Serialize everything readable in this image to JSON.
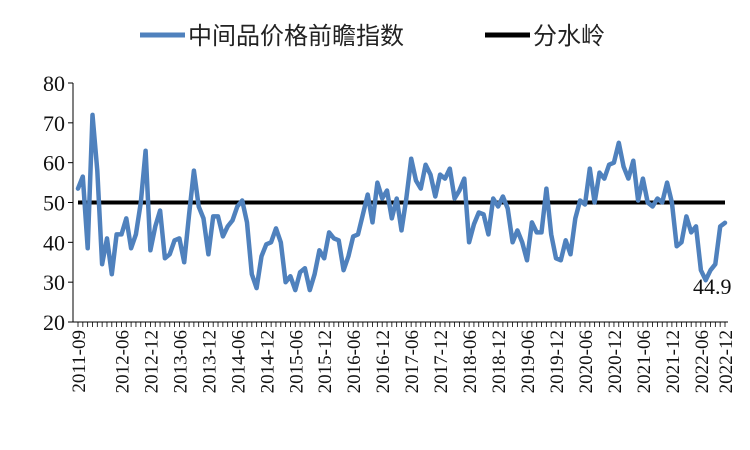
{
  "chart_data": {
    "type": "line",
    "title": "",
    "xlabel": "",
    "ylabel": "",
    "ylim": [
      20,
      80
    ],
    "yticks": [
      "20",
      "30",
      "40",
      "50",
      "60",
      "70",
      "80"
    ],
    "legend_position": "top",
    "categories_first": "2011-09",
    "xtick_labels": [
      "2011-09",
      "2012-06",
      "2012-12",
      "2013-06",
      "2013-12",
      "2014-06",
      "2014-12",
      "2015-06",
      "2015-12",
      "2016-06",
      "2016-12",
      "2017-06",
      "2017-12",
      "2018-06",
      "2018-12",
      "2019-06",
      "2019-12",
      "2020-06",
      "2020-12",
      "2021-06",
      "2021-12",
      "2022-06",
      "2022-12"
    ],
    "series": [
      {
        "name": "中间品价格前瞻指数",
        "color": "#4F81BD",
        "values": [
          53.5,
          56.5,
          38.5,
          72,
          58,
          34.5,
          41,
          32,
          42,
          42,
          46,
          38.5,
          42,
          50,
          63,
          38,
          44,
          48,
          36,
          37,
          40.5,
          41,
          35,
          47,
          58,
          49,
          46,
          37,
          46.5,
          46.5,
          41.5,
          44,
          45.5,
          49,
          50.5,
          45,
          32,
          28.5,
          36.5,
          39.5,
          40,
          43.5,
          40,
          30,
          31.5,
          28,
          32.5,
          33.5,
          28,
          32,
          38,
          36,
          42.5,
          41,
          40.5,
          33,
          36.5,
          41.5,
          42,
          47,
          52,
          45,
          55,
          51,
          53,
          46,
          51,
          43,
          51,
          61,
          55.5,
          53.5,
          59.5,
          57,
          51.5,
          57,
          56,
          58.5,
          51,
          53,
          56,
          40,
          44.5,
          47.5,
          47,
          42,
          51,
          49,
          51.5,
          48.5,
          40,
          43,
          40,
          35.5,
          45,
          42.5,
          42.5,
          53.5,
          42,
          36,
          35.5,
          40.5,
          37,
          46,
          50.5,
          49.5,
          58.5,
          50,
          57.5,
          56,
          59.5,
          60,
          65,
          59,
          56,
          60.5,
          50.5,
          56,
          50,
          49,
          51,
          50,
          55,
          50,
          39,
          40,
          46.5,
          42.5,
          44,
          33,
          30.5,
          33,
          34.5,
          44,
          44.9
        ]
      },
      {
        "name": "分水岭",
        "color": "#000000",
        "constant": 50
      }
    ],
    "annotations": [
      {
        "text": "44.9",
        "target": "last-point"
      }
    ]
  }
}
